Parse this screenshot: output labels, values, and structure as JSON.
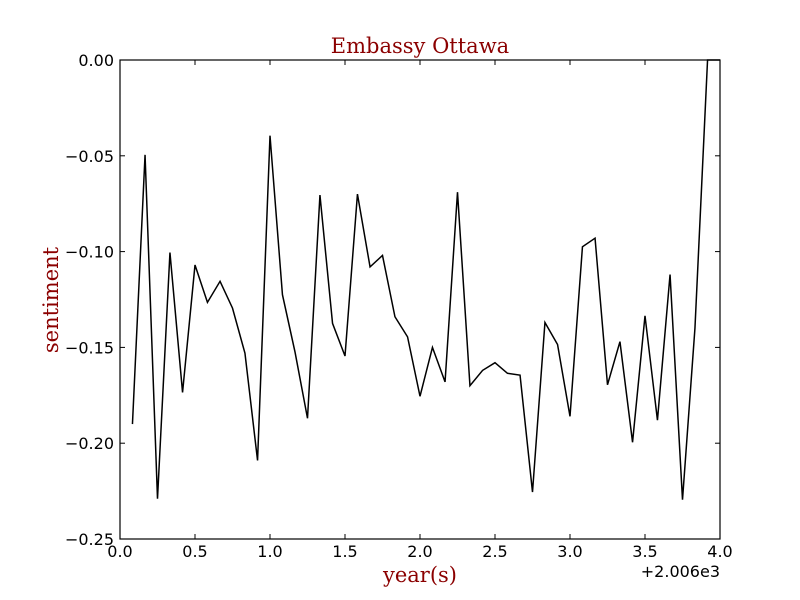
{
  "chart_data": {
    "type": "line",
    "title": "Embassy Ottawa",
    "xlabel": "year(s)",
    "ylabel": "sentiment",
    "x_offset_label": "+2.006e3",
    "xlim": [
      0.0,
      4.0
    ],
    "ylim": [
      -0.25,
      0.0
    ],
    "grid": false,
    "legend": "none",
    "x_ticks": [
      0.0,
      0.5,
      1.0,
      1.5,
      2.0,
      2.5,
      3.0,
      3.5,
      4.0
    ],
    "x_tick_labels": [
      "0.0",
      "0.5",
      "1.0",
      "1.5",
      "2.0",
      "2.5",
      "3.0",
      "3.5",
      "4.0"
    ],
    "y_ticks": [
      0.0,
      -0.05,
      -0.1,
      -0.15,
      -0.2,
      -0.25
    ],
    "y_tick_labels": [
      "0.00",
      "−0.05",
      "−0.10",
      "−0.15",
      "−0.20",
      "−0.25"
    ],
    "colors": {
      "title": "#8b0000",
      "axis_label": "#8b0000",
      "line": "#000000",
      "frame": "#000000"
    },
    "series": [
      {
        "x": [
          0.083,
          0.167,
          0.25,
          0.333,
          0.417,
          0.5,
          0.583,
          0.667,
          0.75,
          0.833,
          0.917,
          1.0,
          1.083,
          1.167,
          1.25,
          1.333,
          1.417,
          1.5,
          1.583,
          1.667,
          1.75,
          1.833,
          1.917,
          2.0,
          2.083,
          2.167,
          2.25,
          2.333,
          2.417,
          2.5,
          2.583,
          2.667,
          2.75,
          2.833,
          2.917,
          3.0,
          3.083,
          3.167,
          3.25,
          3.333,
          3.417,
          3.5,
          3.583,
          3.667,
          3.75,
          3.833,
          3.917,
          4.0
        ],
        "values": [
          -0.19,
          -0.0495,
          -0.229,
          -0.1005,
          -0.1735,
          -0.107,
          -0.1265,
          -0.1155,
          -0.1295,
          -0.153,
          -0.209,
          -0.0395,
          -0.1225,
          -0.1525,
          -0.187,
          -0.0705,
          -0.1375,
          -0.1545,
          -0.07,
          -0.108,
          -0.102,
          -0.134,
          -0.1445,
          -0.1755,
          -0.15,
          -0.168,
          -0.069,
          -0.17,
          -0.162,
          -0.158,
          -0.1635,
          -0.1645,
          -0.2255,
          -0.137,
          -0.1485,
          -0.186,
          -0.0975,
          -0.093,
          -0.1695,
          -0.147,
          -0.1995,
          -0.1335,
          -0.188,
          -0.112,
          -0.2295,
          -0.14,
          0.0,
          0.0
        ]
      }
    ]
  }
}
